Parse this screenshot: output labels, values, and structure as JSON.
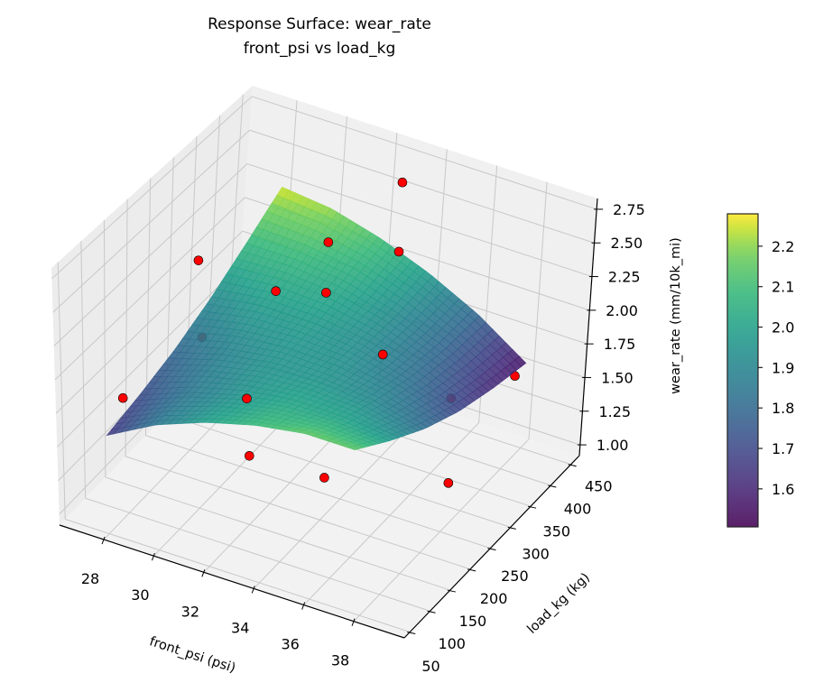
{
  "chart_data": {
    "type": "surface3d",
    "title": "Response Surface: wear_rate",
    "subtitle": "front_psi vs load_kg",
    "xlabel": "front_psi (psi)",
    "ylabel": "load_kg (kg)",
    "zlabel": "wear_rate (mm/10k_mi)",
    "xlim": [
      26.23,
      40.02
    ],
    "ylim": [
      36,
      471
    ],
    "zlim": [
      0.92,
      2.83
    ],
    "xticks": [
      28,
      30,
      32,
      34,
      36,
      38
    ],
    "yticks": [
      50,
      100,
      150,
      200,
      250,
      300,
      350,
      400,
      450
    ],
    "zticks": [
      "1.00",
      "1.25",
      "1.50",
      "1.75",
      "2.00",
      "2.25",
      "2.50",
      "2.75"
    ],
    "grid": true,
    "colormap": "viridis",
    "colorbar": {
      "range": [
        1.506,
        2.28
      ],
      "ticks": [
        "1.6",
        "1.7",
        "1.8",
        "1.9",
        "2.0",
        "2.1",
        "2.2"
      ],
      "placement": "right"
    },
    "surface": {
      "x": [
        28,
        30,
        32,
        34,
        36,
        38
      ],
      "y": [
        50,
        130,
        210,
        290,
        370,
        450
      ],
      "z": [
        [
          1.65,
          1.71,
          1.79,
          1.91,
          2.07,
          2.25
        ],
        [
          1.85,
          1.85,
          1.89,
          1.97,
          2.07,
          2.21
        ],
        [
          1.99,
          1.95,
          1.95,
          1.97,
          2.03,
          2.11
        ],
        [
          2.09,
          2.01,
          1.95,
          1.93,
          1.93,
          1.97
        ],
        [
          2.15,
          2.01,
          1.91,
          1.83,
          1.79,
          1.79
        ],
        [
          2.15,
          1.97,
          1.81,
          1.69,
          1.61,
          1.55
        ]
      ]
    },
    "points": {
      "color": "#ff0000",
      "x": [
        32.7,
        31.6,
        34.4,
        30.0,
        31.3,
        33.3,
        28.4,
        35.6,
        28.7,
        33.7,
        36.7,
        37.6,
        32.0,
        35.0,
        38.3
      ],
      "y": [
        450,
        350,
        350,
        150,
        250,
        250,
        250,
        250,
        50,
        50,
        350,
        450,
        150,
        150,
        250
      ],
      "z": [
        2.57,
        2.37,
        2.47,
        2.76,
        2.3,
        2.41,
        1.78,
        2.09,
        1.97,
        2.27,
        1.52,
        1.43,
        1.43,
        1.45,
        1.3
      ]
    }
  }
}
